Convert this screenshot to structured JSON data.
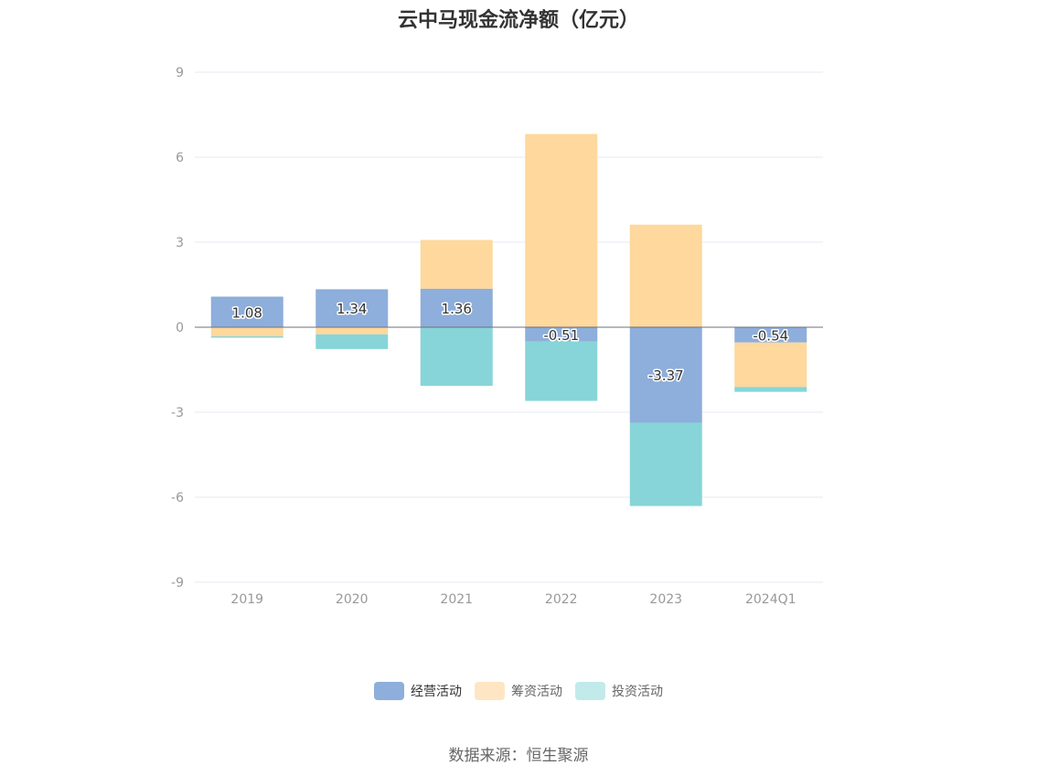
{
  "chart_data": {
    "type": "bar",
    "stacked": true,
    "title": "云中马现金流净额（亿元）",
    "categories": [
      "2019",
      "2020",
      "2021",
      "2022",
      "2023",
      "2024Q1"
    ],
    "series": [
      {
        "name": "经营活动",
        "color": "#8eaedb",
        "values": [
          1.08,
          1.34,
          1.36,
          -0.51,
          -3.37,
          -0.54
        ]
      },
      {
        "name": "筹资活动",
        "color": "#fed89c",
        "values": [
          -0.32,
          -0.25,
          1.72,
          6.82,
          3.62,
          -1.57
        ]
      },
      {
        "name": "投资活动",
        "color": "#87d5d8",
        "values": [
          -0.05,
          -0.52,
          -2.07,
          -2.09,
          -2.94,
          -0.17
        ]
      }
    ],
    "data_labels": [
      "1.08",
      "1.34",
      "1.36",
      "-0.51",
      "-3.37",
      "-0.54"
    ],
    "ylim": [
      -9,
      9
    ],
    "yticks": [
      9,
      6,
      3,
      0,
      -3,
      -6,
      -9
    ],
    "ytick_labels": [
      "9",
      "6",
      "3",
      "0",
      "-3",
      "-6",
      "-9"
    ],
    "grid": true,
    "legend_position": "bottom-center",
    "xlabel": "",
    "ylabel": ""
  },
  "source_text": "数据来源：恒生聚源"
}
